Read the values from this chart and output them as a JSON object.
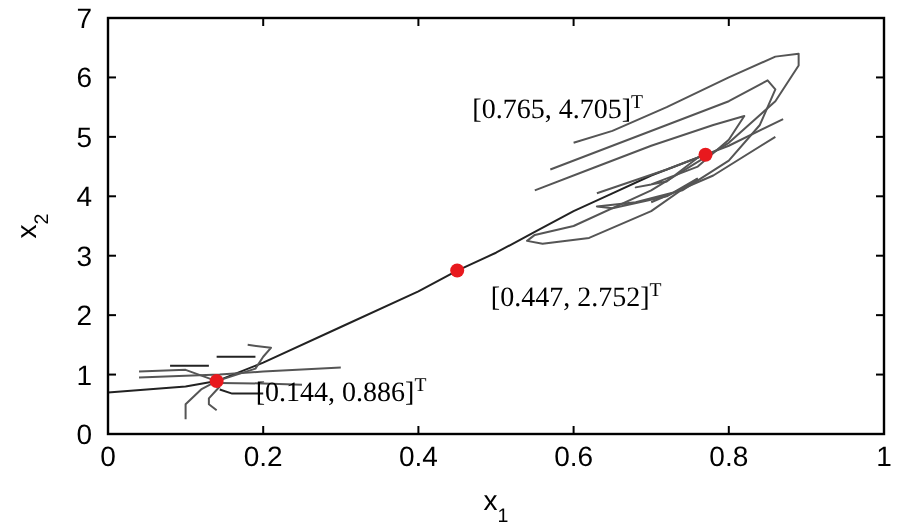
{
  "chart_data": {
    "type": "line",
    "xlabel": "x$_{1}$",
    "ylabel": "x$_{2}$",
    "xlim": [
      0,
      1
    ],
    "ylim": [
      0,
      7
    ],
    "xticks": [
      0,
      0.2,
      0.4,
      0.6,
      0.8,
      1
    ],
    "yticks": [
      0,
      1,
      2,
      3,
      4,
      5,
      6,
      7
    ],
    "grid": false,
    "marker": "none",
    "line_style": "solid",
    "series": [
      {
        "color": "#222222",
        "x": [
          0,
          0.05,
          0.1,
          0.14,
          0.2,
          0.3,
          0.4,
          0.45,
          0.5,
          0.55,
          0.6,
          0.65,
          0.7,
          0.77
        ],
        "values": [
          0.7,
          0.75,
          0.8,
          0.89,
          1.2,
          1.8,
          2.4,
          2.75,
          3.05,
          3.4,
          3.75,
          4.05,
          4.35,
          4.7
        ]
      },
      {
        "type": "line",
        "color": "#555555",
        "x": [
          0.6,
          0.65,
          0.72,
          0.8,
          0.86,
          0.89,
          0.89,
          0.86,
          0.8,
          0.7,
          0.6,
          0.55,
          0.54,
          0.56,
          0.62,
          0.7,
          0.76
        ],
        "values": [
          4.9,
          5.1,
          5.5,
          6.0,
          6.35,
          6.4,
          6.2,
          5.6,
          4.9,
          4.1,
          3.5,
          3.35,
          3.25,
          3.2,
          3.3,
          3.75,
          4.3
        ]
      },
      {
        "type": "line",
        "color": "#555555",
        "x": [
          0.57,
          0.65,
          0.72,
          0.8,
          0.85,
          0.86,
          0.84,
          0.8,
          0.74,
          0.68,
          0.63,
          0.65,
          0.72,
          0.76
        ],
        "values": [
          4.45,
          4.85,
          5.2,
          5.6,
          5.95,
          5.8,
          5.2,
          4.6,
          4.1,
          3.9,
          3.83,
          3.8,
          4.0,
          4.3
        ]
      },
      {
        "type": "line",
        "color": "#555555",
        "x": [
          0.55,
          0.62,
          0.7,
          0.78,
          0.82,
          0.8,
          0.76,
          0.7,
          0.68,
          0.72,
          0.765
        ],
        "values": [
          4.1,
          4.45,
          4.85,
          5.2,
          5.35,
          4.95,
          4.5,
          4.2,
          4.15,
          4.25,
          4.7
        ]
      },
      {
        "type": "line",
        "color": "#555555",
        "x": [
          0.63,
          0.72,
          0.8,
          0.87
        ],
        "values": [
          4.05,
          4.45,
          4.85,
          5.3
        ]
      },
      {
        "type": "line",
        "color": "#555555",
        "x": [
          0.7,
          0.78,
          0.86
        ],
        "values": [
          3.9,
          4.35,
          5.0
        ]
      },
      {
        "type": "line",
        "color": "#555555",
        "x": [
          0.04,
          0.1,
          0.144,
          0.2,
          0.3
        ],
        "values": [
          0.95,
          0.98,
          1.0,
          1.05,
          1.12
        ]
      },
      {
        "type": "line",
        "color": "#555555",
        "x": [
          0.04,
          0.1,
          0.14
        ],
        "values": [
          1.05,
          1.08,
          0.89
        ]
      },
      {
        "type": "line",
        "color": "#222222",
        "x": [
          0.08,
          0.13
        ],
        "values": [
          1.15,
          1.15
        ]
      },
      {
        "type": "line",
        "color": "#222222",
        "x": [
          0.14,
          0.19
        ],
        "values": [
          1.3,
          1.3
        ]
      },
      {
        "type": "line",
        "color": "#555555",
        "x": [
          0.14,
          0.19,
          0.2,
          0.21,
          0.18
        ],
        "values": [
          0.89,
          1.1,
          1.3,
          1.45,
          1.5
        ]
      },
      {
        "type": "line",
        "color": "#555555",
        "x": [
          0.144,
          0.2,
          0.25
        ],
        "values": [
          0.86,
          0.85,
          0.83
        ]
      },
      {
        "type": "line",
        "color": "#222222",
        "x": [
          0.144,
          0.16,
          0.2
        ],
        "values": [
          0.75,
          0.68,
          0.68
        ]
      },
      {
        "type": "line",
        "color": "#555555",
        "x": [
          0.14,
          0.12,
          0.1,
          0.1
        ],
        "values": [
          0.89,
          0.75,
          0.5,
          0.25
        ]
      },
      {
        "type": "line",
        "color": "#555555",
        "x": [
          0.144,
          0.13,
          0.13,
          0.14
        ],
        "values": [
          0.8,
          0.6,
          0.5,
          0.4
        ]
      },
      {
        "type": "scatter",
        "color": "#e8191e",
        "marker": "circle",
        "x": [
          0.14,
          0.45,
          0.77
        ],
        "values": [
          0.89,
          2.75,
          4.7
        ]
      }
    ],
    "annotations": [
      {
        "text": "[0.765, 4.705]$^{T}$",
        "x": 0.765,
        "y": 4.705
      },
      {
        "text": "[0.447, 2.752]$^{T}$",
        "x": 0.447,
        "y": 2.752
      },
      {
        "text": "[0.144, 0.886]$^{T}$",
        "x": 0.144,
        "y": 0.886
      }
    ]
  }
}
